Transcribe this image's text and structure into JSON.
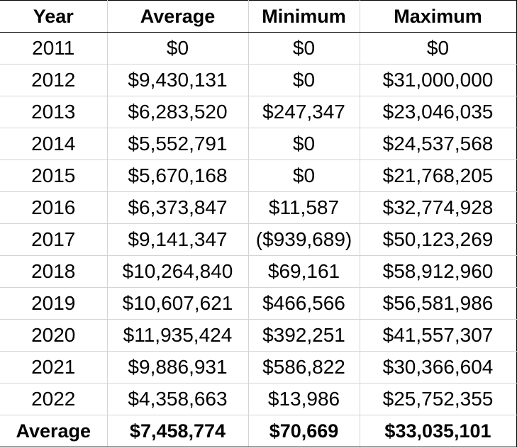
{
  "table": {
    "headers": [
      "Year",
      "Average",
      "Minimum",
      "Maximum"
    ],
    "rows": [
      [
        "2011",
        "$0",
        "$0",
        "$0"
      ],
      [
        "2012",
        "$9,430,131",
        "$0",
        "$31,000,000"
      ],
      [
        "2013",
        "$6,283,520",
        "$247,347",
        "$23,046,035"
      ],
      [
        "2014",
        "$5,552,791",
        "$0",
        "$24,537,568"
      ],
      [
        "2015",
        "$5,670,168",
        "$0",
        "$21,768,205"
      ],
      [
        "2016",
        "$6,373,847",
        "$11,587",
        "$32,774,928"
      ],
      [
        "2017",
        "$9,141,347",
        "($939,689)",
        "$50,123,269"
      ],
      [
        "2018",
        "$10,264,840",
        "$69,161",
        "$58,912,960"
      ],
      [
        "2019",
        "$10,607,621",
        "$466,566",
        "$56,581,986"
      ],
      [
        "2020",
        "$11,935,424",
        "$392,251",
        "$41,557,307"
      ],
      [
        "2021",
        "$9,886,931",
        "$586,822",
        "$30,366,604"
      ],
      [
        "2022",
        "$4,358,663",
        "$13,986",
        "$25,752,355"
      ]
    ],
    "footer": [
      "Average",
      "$7,458,774",
      "$70,669",
      "$33,035,101"
    ]
  }
}
